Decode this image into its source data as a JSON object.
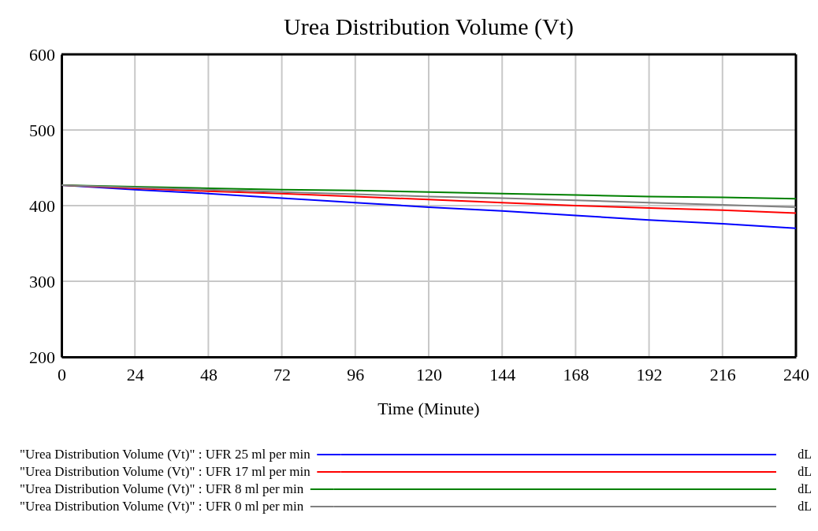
{
  "chart_data": {
    "type": "line",
    "title": "Urea Distribution Volume (Vt)",
    "xlabel": "Time (Minute)",
    "x": [
      0,
      24,
      48,
      72,
      96,
      120,
      144,
      168,
      192,
      216,
      240
    ],
    "xlim": [
      0,
      240
    ],
    "xticks": [
      0,
      24,
      48,
      72,
      96,
      120,
      144,
      168,
      192,
      216,
      240
    ],
    "ylim": [
      200,
      600
    ],
    "yticks": [
      200,
      300,
      400,
      500,
      600
    ],
    "grid": true,
    "legend": "bottom",
    "series": [
      {
        "name": "\"Urea Distribution Volume (Vt)\" : UFR 25 ml per min",
        "color": "#0000ff",
        "values": [
          427,
          421,
          416,
          410,
          404,
          398,
          393,
          387,
          381,
          376,
          370
        ]
      },
      {
        "name": "\"Urea Distribution Volume (Vt)\" : UFR 17 ml per min",
        "color": "#ff0000",
        "values": [
          427,
          423,
          419,
          416,
          412,
          408,
          404,
          400,
          397,
          394,
          390
        ]
      },
      {
        "name": "\"Urea Distribution Volume (Vt)\" : UFR 8 ml per min",
        "color": "#008000",
        "values": [
          427,
          425,
          423,
          421,
          420,
          418,
          416,
          414,
          412,
          411,
          409
        ]
      },
      {
        "name": "\"Urea Distribution Volume (Vt)\" : UFR 0 ml per min",
        "color": "#808080",
        "values": [
          427,
          424,
          421,
          418,
          415,
          412,
          410,
          407,
          404,
          401,
          398
        ]
      }
    ],
    "annotations": [
      "dL",
      "dL",
      "dL",
      "dL"
    ]
  }
}
